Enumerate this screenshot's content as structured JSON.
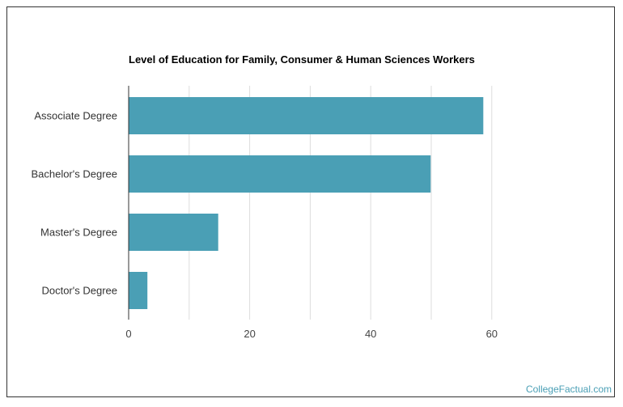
{
  "chart_data": {
    "type": "bar",
    "orientation": "horizontal",
    "title": "Level of Education for Family, Consumer & Human Sciences Workers",
    "categories": [
      "Associate Degree",
      "Bachelor's Degree",
      "Master's Degree",
      "Doctor's Degree"
    ],
    "values": [
      58.6,
      49.9,
      14.8,
      3.1
    ],
    "xlim": [
      0,
      80
    ],
    "xticks": [
      0,
      20,
      40,
      60
    ],
    "grid": true,
    "bar_color": "#4a9fb5",
    "grid_color": "#dddddd"
  },
  "footer": {
    "watermark": "CollegeFactual.com"
  }
}
